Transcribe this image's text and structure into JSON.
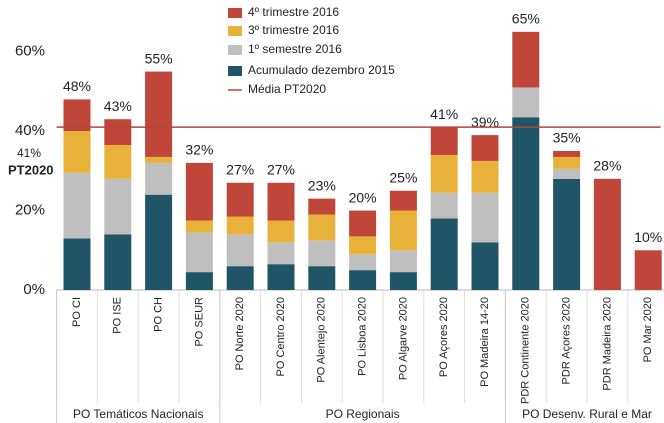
{
  "chart_data": {
    "type": "stacked_bar",
    "categories": [
      "PO CI",
      "PO ISE",
      "PO CH",
      "PO SEUR",
      "PO Norte 2020",
      "PO Centro 2020",
      "PO Alentejo 2020",
      "PO Lisboa 2020",
      "PO Algarve 2020",
      "PO Açores 2020",
      "PO Madeira 14-20",
      "PDR Continente 2020",
      "PDR Açores 2020",
      "PDR Madeira 2020",
      "PO Mar 2020"
    ],
    "series": [
      {
        "name": "Acumulado dezembro 2015",
        "color": "#1f5566",
        "values": [
          13,
          14,
          24,
          4.5,
          6,
          6.5,
          6,
          5,
          4.5,
          18,
          12,
          43.5,
          28,
          0,
          0
        ]
      },
      {
        "name": "1º semestre 2016",
        "color": "#bfbfbf",
        "values": [
          16.5,
          14,
          8,
          10,
          8,
          5.5,
          6.5,
          4,
          5.5,
          6.5,
          12.5,
          7.5,
          2.5,
          0,
          0
        ]
      },
      {
        "name": "3º trimestre 2016",
        "color": "#e8b23a",
        "values": [
          10.5,
          8.5,
          1.5,
          3,
          4.5,
          5.5,
          6.5,
          4.5,
          10,
          9.5,
          8,
          0,
          3,
          0,
          0
        ]
      },
      {
        "name": "4º trimestre 2016",
        "color": "#c0463a",
        "values": [
          8,
          6.5,
          21.5,
          14.5,
          8.5,
          9.5,
          4,
          6.5,
          5,
          7,
          6.5,
          14,
          1.5,
          28,
          10
        ]
      }
    ],
    "totals": [
      48,
      43,
      55,
      32,
      27,
      27,
      23,
      20,
      25,
      41,
      39,
      65,
      35,
      28,
      10
    ],
    "total_labels": [
      "48%",
      "43%",
      "55%",
      "32%",
      "27%",
      "27%",
      "23%",
      "20%",
      "25%",
      "41%",
      "39%",
      "65%",
      "35%",
      "28%",
      "10%"
    ],
    "reference": {
      "name": "Média PT2020",
      "value": 41,
      "label": "41%",
      "sublabel": "PT2020",
      "color": "#b5473a"
    },
    "groups": [
      {
        "label": "PO Temáticos Nacionais",
        "size": 4
      },
      {
        "label": "PO Regionais",
        "size": 7
      },
      {
        "label": "PO Desenv. Rural e Mar",
        "size": 4
      }
    ],
    "ylim": [
      0,
      70
    ],
    "yticks": [
      {
        "value": 0,
        "label": "0%"
      },
      {
        "value": 20,
        "label": "20%"
      },
      {
        "value": 40,
        "label": "40%"
      },
      {
        "value": 60,
        "label": "60%"
      }
    ]
  }
}
